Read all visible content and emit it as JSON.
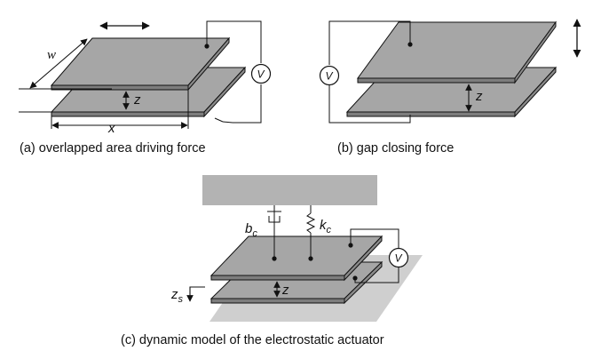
{
  "figure": {
    "panel_a": {
      "caption": "(a) overlapped area driving force",
      "label_w": "w",
      "label_z": "z",
      "label_x": "x",
      "voltmeter": "V"
    },
    "panel_b": {
      "caption": "(b) gap closing force",
      "label_z": "z",
      "voltmeter": "V"
    },
    "panel_c": {
      "caption": "(c) dynamic model of the electrostatic actuator",
      "label_b": "b",
      "label_b_sub": "c",
      "label_k": "k",
      "label_k_sub": "c",
      "label_z": "z",
      "label_zs": "z",
      "label_zs_sub": "s",
      "voltmeter": "V"
    }
  },
  "colors": {
    "plate_top": "#a6a6a6",
    "plate_side": "#7d7d7d",
    "fixed_frame": "#b3b3b3",
    "ground_shadow": "#cfcfcf",
    "line": "#111111"
  }
}
